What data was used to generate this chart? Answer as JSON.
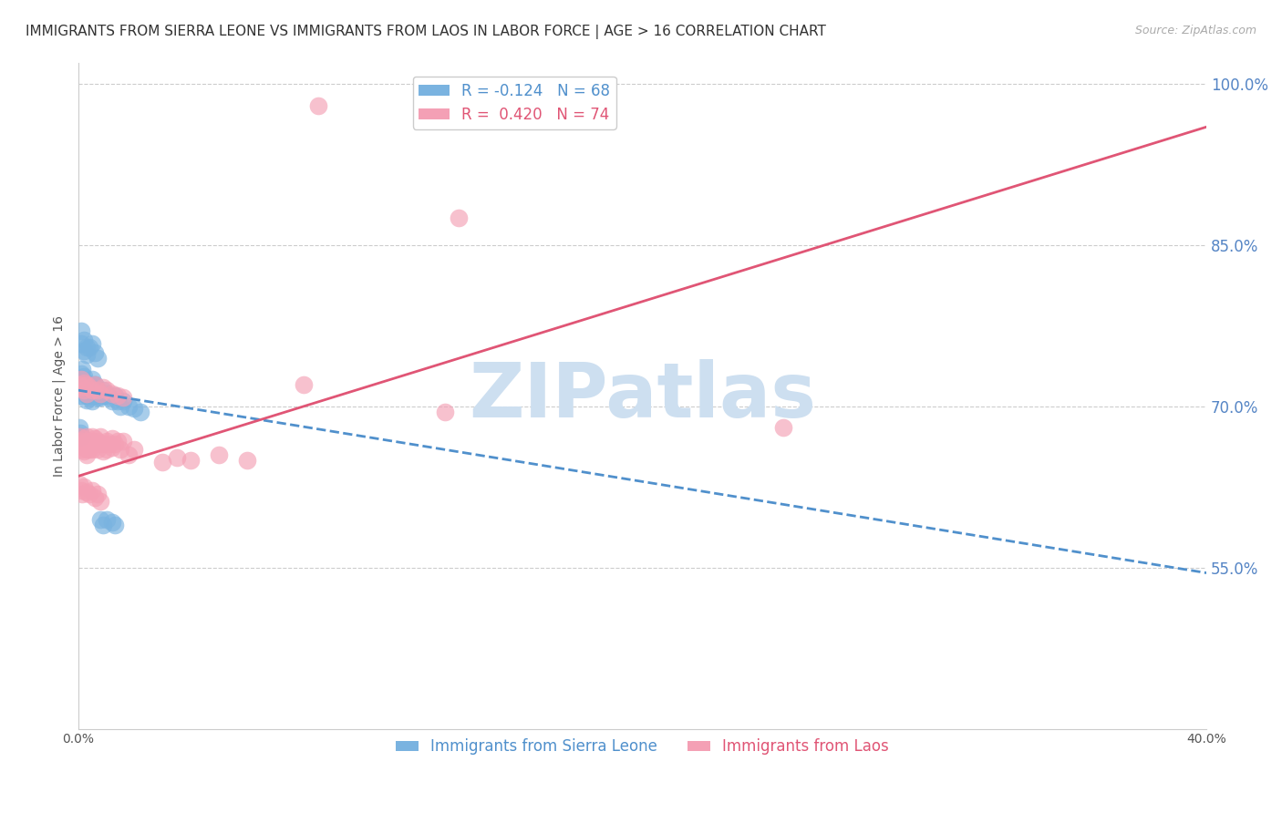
{
  "title": "IMMIGRANTS FROM SIERRA LEONE VS IMMIGRANTS FROM LAOS IN LABOR FORCE | AGE > 16 CORRELATION CHART",
  "source": "Source: ZipAtlas.com",
  "ylabel": "In Labor Force | Age > 16",
  "watermark": "ZIPatlas",
  "series": [
    {
      "label": "Immigrants from Sierra Leone",
      "R": -0.124,
      "N": 68,
      "color": "#7ab3e0",
      "line_color": "#5090cc",
      "line_style": "--",
      "regression_x0": 0.0,
      "regression_y0": 0.715,
      "regression_x1": 0.4,
      "regression_y1": 0.545,
      "x": [
        0.0005,
        0.001,
        0.001,
        0.001,
        0.0015,
        0.0015,
        0.002,
        0.002,
        0.002,
        0.0025,
        0.0025,
        0.003,
        0.003,
        0.003,
        0.003,
        0.003,
        0.003,
        0.0035,
        0.004,
        0.004,
        0.004,
        0.004,
        0.005,
        0.005,
        0.005,
        0.005,
        0.005,
        0.006,
        0.006,
        0.006,
        0.006,
        0.007,
        0.007,
        0.007,
        0.008,
        0.008,
        0.009,
        0.009,
        0.01,
        0.01,
        0.011,
        0.012,
        0.013,
        0.014,
        0.015,
        0.016,
        0.018,
        0.02,
        0.022,
        0.001,
        0.001,
        0.002,
        0.002,
        0.003,
        0.003,
        0.004,
        0.005,
        0.006,
        0.007,
        0.008,
        0.009,
        0.01,
        0.012,
        0.013,
        0.0005,
        0.0008,
        0.0012
      ],
      "y": [
        0.72,
        0.725,
        0.73,
        0.71,
        0.735,
        0.718,
        0.722,
        0.715,
        0.728,
        0.72,
        0.712,
        0.718,
        0.715,
        0.71,
        0.722,
        0.72,
        0.706,
        0.715,
        0.72,
        0.712,
        0.708,
        0.718,
        0.725,
        0.715,
        0.71,
        0.718,
        0.705,
        0.72,
        0.715,
        0.71,
        0.72,
        0.715,
        0.712,
        0.708,
        0.712,
        0.708,
        0.71,
        0.715,
        0.71,
        0.712,
        0.708,
        0.705,
        0.71,
        0.705,
        0.7,
        0.705,
        0.7,
        0.698,
        0.695,
        0.758,
        0.77,
        0.762,
        0.752,
        0.755,
        0.748,
        0.755,
        0.758,
        0.75,
        0.745,
        0.595,
        0.59,
        0.595,
        0.592,
        0.59,
        0.68,
        0.675,
        0.672
      ]
    },
    {
      "label": "Immigrants from Laos",
      "R": 0.42,
      "N": 74,
      "color": "#f4a0b5",
      "line_color": "#e05575",
      "line_style": "-",
      "regression_x0": 0.0,
      "regression_y0": 0.635,
      "regression_x1": 0.4,
      "regression_y1": 0.96,
      "x": [
        0.0005,
        0.001,
        0.001,
        0.0015,
        0.002,
        0.002,
        0.002,
        0.003,
        0.003,
        0.003,
        0.003,
        0.004,
        0.004,
        0.004,
        0.005,
        0.005,
        0.005,
        0.006,
        0.006,
        0.007,
        0.007,
        0.008,
        0.008,
        0.009,
        0.009,
        0.01,
        0.01,
        0.011,
        0.012,
        0.012,
        0.013,
        0.014,
        0.015,
        0.016,
        0.018,
        0.02,
        0.0005,
        0.001,
        0.001,
        0.002,
        0.002,
        0.003,
        0.003,
        0.004,
        0.005,
        0.006,
        0.007,
        0.008,
        0.009,
        0.01,
        0.012,
        0.014,
        0.016,
        0.0005,
        0.001,
        0.0015,
        0.002,
        0.003,
        0.004,
        0.005,
        0.006,
        0.007,
        0.008,
        0.085,
        0.135,
        0.25,
        0.08,
        0.13,
        0.06,
        0.05,
        0.04,
        0.035,
        0.03
      ],
      "y": [
        0.672,
        0.668,
        0.66,
        0.665,
        0.662,
        0.67,
        0.658,
        0.668,
        0.66,
        0.672,
        0.655,
        0.668,
        0.66,
        0.665,
        0.668,
        0.66,
        0.672,
        0.665,
        0.67,
        0.66,
        0.668,
        0.665,
        0.672,
        0.658,
        0.665,
        0.668,
        0.66,
        0.665,
        0.662,
        0.67,
        0.665,
        0.668,
        0.66,
        0.668,
        0.655,
        0.66,
        0.72,
        0.725,
        0.718,
        0.722,
        0.715,
        0.72,
        0.712,
        0.718,
        0.715,
        0.72,
        0.715,
        0.712,
        0.718,
        0.715,
        0.712,
        0.71,
        0.708,
        0.628,
        0.622,
        0.618,
        0.625,
        0.62,
        0.618,
        0.622,
        0.615,
        0.618,
        0.612,
        0.98,
        0.875,
        0.68,
        0.72,
        0.695,
        0.65,
        0.655,
        0.65,
        0.652,
        0.648
      ]
    }
  ],
  "xlim": [
    0.0,
    0.4
  ],
  "ylim": [
    0.4,
    1.02
  ],
  "x_ticks": [
    0.0,
    0.05,
    0.1,
    0.15,
    0.2,
    0.25,
    0.3,
    0.35,
    0.4
  ],
  "x_tick_labels": [
    "0.0%",
    "",
    "",
    "",
    "",
    "",
    "",
    "",
    "40.0%"
  ],
  "y_ticks_right": [
    0.55,
    0.7,
    0.85,
    1.0
  ],
  "y_tick_labels_right": [
    "55.0%",
    "70.0%",
    "85.0%",
    "100.0%"
  ],
  "grid_color": "#cccccc",
  "background_color": "#ffffff",
  "watermark_color": "#cddff0",
  "title_fontsize": 11,
  "axis_label_fontsize": 10,
  "tick_fontsize": 10,
  "legend_fontsize": 12,
  "source_fontsize": 9
}
